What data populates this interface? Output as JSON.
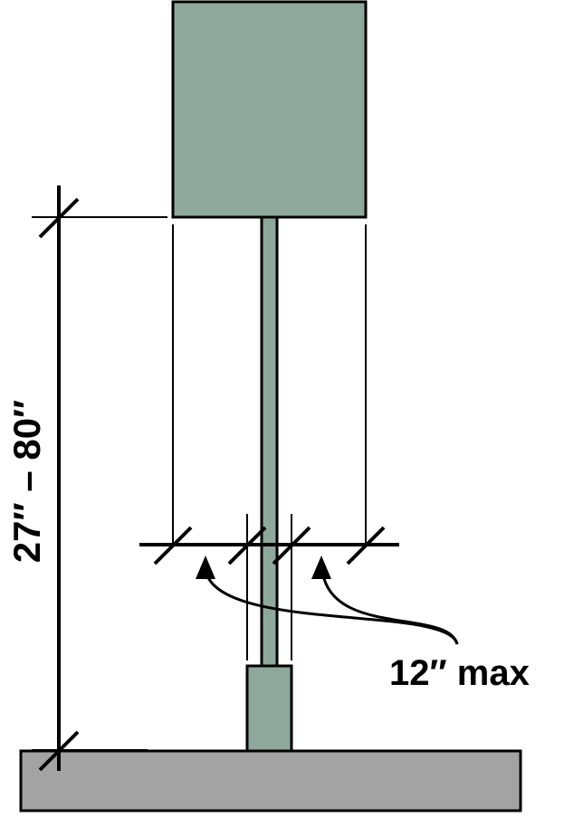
{
  "labels": {
    "height_range": "27″ – 80″",
    "protrusion_max": "12″ max"
  },
  "colors": {
    "sign_fill": "#8fa89e",
    "ground_fill": "#a3a3a3",
    "stroke": "#000000"
  }
}
